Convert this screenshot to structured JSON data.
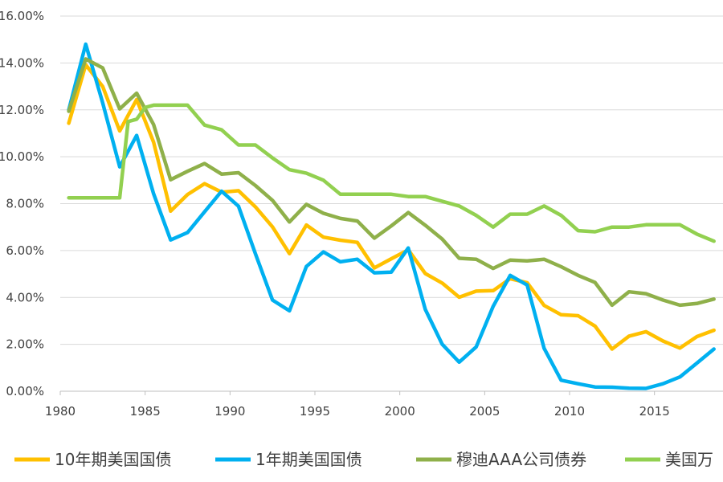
{
  "chart_data": {
    "type": "line",
    "title": "",
    "xlabel": "",
    "ylabel": "",
    "xlim": [
      1980,
      2018.8
    ],
    "ylim": [
      0,
      16
    ],
    "y_tick_labels": [
      "0.00%",
      "2.00%",
      "4.00%",
      "6.00%",
      "8.00%",
      "10.00%",
      "12.00%",
      "14.00%",
      "16.00%"
    ],
    "x_tick_labels": [
      "1980",
      "1985",
      "1990",
      "1995",
      "2000",
      "2005",
      "2010",
      "2015"
    ],
    "grid": true,
    "legend_position": "bottom",
    "series": [
      {
        "name": "10年期美国国债",
        "color": "#ffc000",
        "x": [
          1980.5,
          1981.5,
          1982.5,
          1983.5,
          1984.5,
          1985.5,
          1986.5,
          1987.5,
          1988.5,
          1989.5,
          1990.5,
          1991.5,
          1992.5,
          1993.5,
          1994.5,
          1995.5,
          1996.5,
          1997.5,
          1998.5,
          1999.5,
          2000.5,
          2001.5,
          2002.5,
          2003.5,
          2004.5,
          2005.5,
          2006.5,
          2007.5,
          2008.5,
          2009.5,
          2010.5,
          2011.5,
          2012.5,
          2013.5,
          2014.5,
          2015.5,
          2016.5,
          2017.5,
          2018.5
        ],
        "values": [
          11.43,
          13.92,
          13.0,
          11.1,
          12.44,
          10.62,
          7.68,
          8.39,
          8.85,
          8.49,
          8.55,
          7.86,
          7.01,
          5.87,
          7.09,
          6.57,
          6.44,
          6.35,
          5.26,
          5.65,
          6.03,
          5.02,
          4.61,
          4.01,
          4.27,
          4.29,
          4.8,
          4.63,
          3.66,
          3.26,
          3.22,
          2.78,
          1.8,
          2.35,
          2.54,
          2.14,
          1.84,
          2.33,
          2.6
        ]
      },
      {
        "name": "1年期美国国债",
        "color": "#00b0f0",
        "x": [
          1980.5,
          1981.5,
          1982.5,
          1983.5,
          1984.5,
          1985.5,
          1986.5,
          1987.5,
          1988.5,
          1989.5,
          1990.5,
          1991.5,
          1992.5,
          1993.5,
          1994.5,
          1995.5,
          1996.5,
          1997.5,
          1998.5,
          1999.5,
          2000.5,
          2001.5,
          2002.5,
          2003.5,
          2004.5,
          2005.5,
          2006.5,
          2007.5,
          2008.5,
          2009.5,
          2010.5,
          2011.5,
          2012.5,
          2013.5,
          2014.5,
          2015.5,
          2016.5,
          2017.5,
          2018.5
        ],
        "values": [
          12.0,
          14.8,
          12.3,
          9.57,
          10.91,
          8.42,
          6.45,
          6.77,
          7.65,
          8.53,
          7.89,
          5.86,
          3.89,
          3.43,
          5.32,
          5.94,
          5.52,
          5.63,
          5.05,
          5.08,
          6.11,
          3.49,
          2.0,
          1.24,
          1.89,
          3.62,
          4.94,
          4.53,
          1.83,
          0.47,
          0.32,
          0.18,
          0.17,
          0.13,
          0.12,
          0.32,
          0.61,
          1.2,
          1.8
        ]
      },
      {
        "name": "穆迪AAA公司债券",
        "color": "#8fb04a",
        "x": [
          1980.5,
          1981.5,
          1982.5,
          1983.5,
          1984.5,
          1985.5,
          1986.5,
          1987.5,
          1988.5,
          1989.5,
          1990.5,
          1991.5,
          1992.5,
          1993.5,
          1994.5,
          1995.5,
          1996.5,
          1997.5,
          1998.5,
          1999.5,
          2000.5,
          2001.5,
          2002.5,
          2003.5,
          2004.5,
          2005.5,
          2006.5,
          2007.5,
          2008.5,
          2009.5,
          2010.5,
          2011.5,
          2012.5,
          2013.5,
          2014.5,
          2015.5,
          2016.5,
          2017.5,
          2018.5
        ],
        "values": [
          11.94,
          14.17,
          13.79,
          12.04,
          12.71,
          11.37,
          9.02,
          9.38,
          9.71,
          9.26,
          9.32,
          8.77,
          8.14,
          7.22,
          7.97,
          7.59,
          7.37,
          7.26,
          6.53,
          7.05,
          7.62,
          7.08,
          6.49,
          5.67,
          5.63,
          5.24,
          5.59,
          5.56,
          5.63,
          5.31,
          4.94,
          4.64,
          3.67,
          4.24,
          4.16,
          3.89,
          3.67,
          3.74,
          3.93
        ]
      },
      {
        "name": "美国万",
        "color": "#92d050",
        "x": [
          1980.5,
          1981.5,
          1982.5,
          1983.5,
          1984.0,
          1984.5,
          1985.0,
          1985.5,
          1986.5,
          1987.5,
          1988.5,
          1989.5,
          1990.5,
          1991.5,
          1992.5,
          1993.5,
          1994.5,
          1995.5,
          1996.5,
          1997.5,
          1998.5,
          1999.5,
          2000.5,
          2001.5,
          2002.5,
          2003.5,
          2004.5,
          2005.5,
          2006.5,
          2007.5,
          2008.5,
          2009.5,
          2010.5,
          2011.5,
          2012.5,
          2013.5,
          2014.5,
          2015.5,
          2016.5,
          2017.5,
          2018.5
        ],
        "values": [
          8.25,
          8.25,
          8.25,
          8.25,
          11.5,
          11.6,
          12.1,
          12.2,
          12.2,
          12.2,
          11.35,
          11.15,
          10.5,
          10.5,
          9.95,
          9.45,
          9.3,
          9.0,
          8.4,
          8.4,
          8.4,
          8.4,
          8.3,
          8.3,
          8.1,
          7.9,
          7.5,
          7.0,
          7.55,
          7.55,
          7.9,
          7.5,
          6.85,
          6.8,
          7.0,
          7.0,
          7.1,
          7.1,
          7.1,
          6.7,
          6.4
        ]
      }
    ]
  }
}
